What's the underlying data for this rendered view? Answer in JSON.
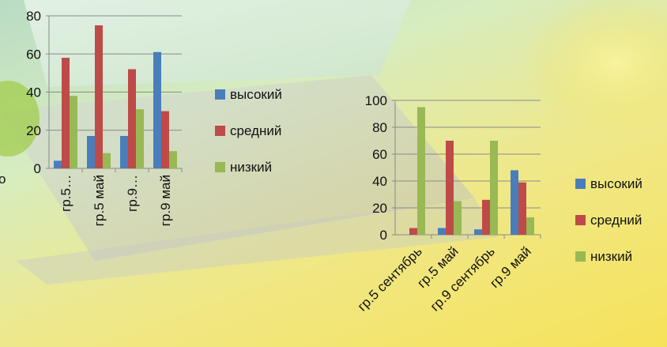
{
  "colors": {
    "высокий": "#4a7ebb",
    "средний": "#be4b48",
    "низкий": "#98b954"
  },
  "chart_data": [
    {
      "type": "bar",
      "categories": [
        "гр.5…",
        "гр.5 май",
        "гр.9…",
        "гр.9 май"
      ],
      "ylim": [
        0,
        80
      ],
      "yticks": [
        0,
        20,
        40,
        60,
        80
      ],
      "series": [
        {
          "name": "высокий",
          "values": [
            4,
            17,
            17,
            61
          ]
        },
        {
          "name": "средний",
          "values": [
            58,
            75,
            52,
            30
          ]
        },
        {
          "name": "низкий",
          "values": [
            38,
            8,
            31,
            9
          ]
        }
      ],
      "legend": "right",
      "grid": true
    },
    {
      "type": "bar",
      "categories": [
        "гр.5 сентябрь",
        "гр.5 май",
        "гр.9 сентябрь",
        "гр.9 май"
      ],
      "ylim": [
        0,
        100
      ],
      "yticks": [
        0,
        20,
        40,
        60,
        80,
        100
      ],
      "series": [
        {
          "name": "высокий",
          "values": [
            0,
            5,
            4,
            48
          ]
        },
        {
          "name": "средний",
          "values": [
            5,
            70,
            26,
            39
          ]
        },
        {
          "name": "низкий",
          "values": [
            95,
            25,
            70,
            13
          ]
        }
      ],
      "legend": "right",
      "grid": true
    }
  ],
  "background_text": "о"
}
